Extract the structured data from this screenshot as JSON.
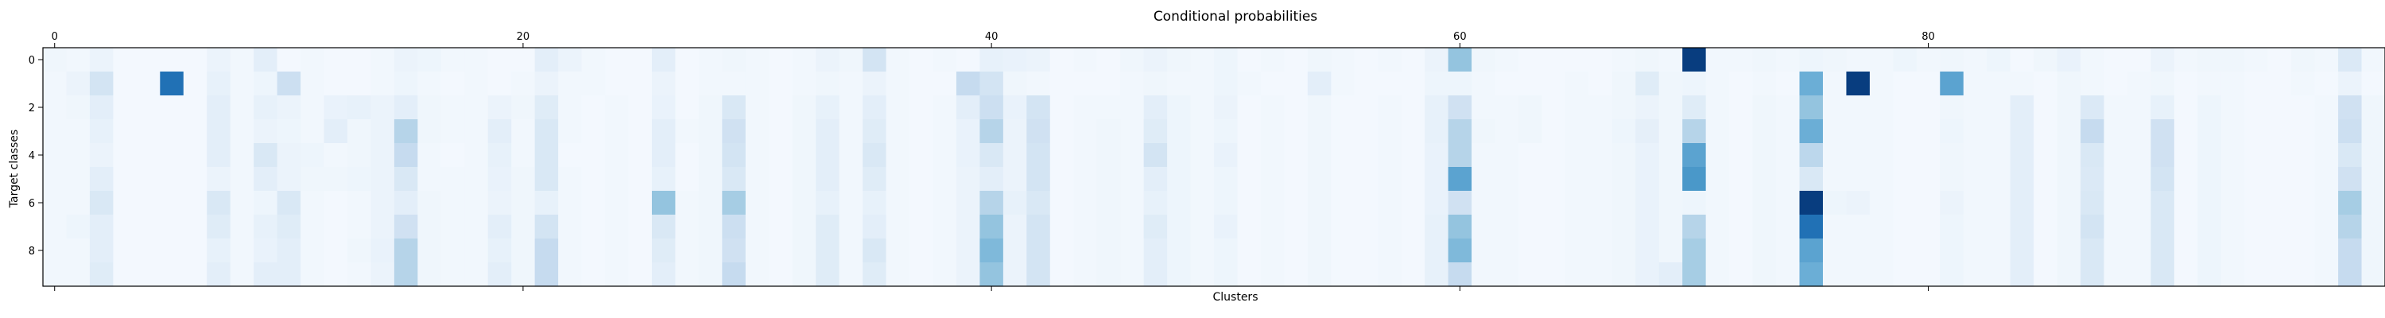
{
  "chart_data": {
    "type": "heatmap",
    "title": "Conditional probabilities",
    "xlabel": "Clusters",
    "ylabel": "Target classes",
    "x_ticks": [
      0,
      20,
      40,
      60,
      80
    ],
    "y_ticks": [
      0,
      2,
      4,
      6,
      8
    ],
    "x_tick_position": "top",
    "n_columns": 100,
    "n_rows": 10,
    "value_range": [
      0,
      1
    ],
    "colormap": "Blues",
    "grid": false,
    "values": [
      [
        0.04,
        0.03,
        0.06,
        0.02,
        0.02,
        0.02,
        0.02,
        0.06,
        0.03,
        0.1,
        0.02,
        0.03,
        0.02,
        0.02,
        0.03,
        0.06,
        0.05,
        0.03,
        0.03,
        0.02,
        0.02,
        0.1,
        0.06,
        0.03,
        0.02,
        0.02,
        0.1,
        0.02,
        0.03,
        0.04,
        0.03,
        0.02,
        0.03,
        0.06,
        0.04,
        0.18,
        0.03,
        0.02,
        0.03,
        0.02,
        0.08,
        0.07,
        0.06,
        0.02,
        0.03,
        0.02,
        0.04,
        0.06,
        0.04,
        0.03,
        0.05,
        0.02,
        0.03,
        0.02,
        0.04,
        0.03,
        0.02,
        0.03,
        0.02,
        0.06,
        0.4,
        0.04,
        0.03,
        0.02,
        0.02,
        0.02,
        0.02,
        0.03,
        0.04,
        0.03,
        0.95,
        0.03,
        0.03,
        0.04,
        0.03,
        0.05,
        0.04,
        0.03,
        0.03,
        0.05,
        0.03,
        0.04,
        0.03,
        0.05,
        0.02,
        0.04,
        0.07,
        0.03,
        0.02,
        0.02,
        0.06,
        0.03,
        0.04,
        0.04,
        0.03,
        0.02,
        0.04,
        0.03,
        0.14,
        0.03
      ],
      [
        0.03,
        0.06,
        0.18,
        0.02,
        0.02,
        0.75,
        0.02,
        0.08,
        0.03,
        0.05,
        0.22,
        0.03,
        0.02,
        0.02,
        0.03,
        0.05,
        0.03,
        0.02,
        0.03,
        0.02,
        0.03,
        0.06,
        0.03,
        0.03,
        0.02,
        0.02,
        0.06,
        0.02,
        0.03,
        0.03,
        0.03,
        0.02,
        0.03,
        0.04,
        0.03,
        0.06,
        0.03,
        0.02,
        0.02,
        0.25,
        0.18,
        0.04,
        0.03,
        0.02,
        0.02,
        0.02,
        0.03,
        0.04,
        0.03,
        0.03,
        0.05,
        0.03,
        0.02,
        0.02,
        0.1,
        0.03,
        0.02,
        0.02,
        0.02,
        0.05,
        0.05,
        0.03,
        0.02,
        0.02,
        0.02,
        0.03,
        0.02,
        0.04,
        0.12,
        0.04,
        0.05,
        0.03,
        0.02,
        0.03,
        0.02,
        0.5,
        0.03,
        0.95,
        0.03,
        0.02,
        0.02,
        0.55,
        0.03,
        0.03,
        0.03,
        0.02,
        0.04,
        0.03,
        0.02,
        0.03,
        0.04,
        0.02,
        0.03,
        0.03,
        0.02,
        0.02,
        0.03,
        0.02,
        0.06,
        0.02
      ],
      [
        0.03,
        0.04,
        0.1,
        0.02,
        0.02,
        0.02,
        0.02,
        0.1,
        0.03,
        0.08,
        0.06,
        0.03,
        0.07,
        0.08,
        0.06,
        0.1,
        0.04,
        0.03,
        0.03,
        0.06,
        0.04,
        0.12,
        0.03,
        0.02,
        0.03,
        0.02,
        0.07,
        0.02,
        0.04,
        0.15,
        0.03,
        0.02,
        0.04,
        0.08,
        0.03,
        0.1,
        0.03,
        0.02,
        0.03,
        0.1,
        0.22,
        0.07,
        0.18,
        0.02,
        0.03,
        0.03,
        0.03,
        0.1,
        0.05,
        0.03,
        0.06,
        0.02,
        0.03,
        0.02,
        0.04,
        0.02,
        0.02,
        0.03,
        0.02,
        0.08,
        0.2,
        0.03,
        0.03,
        0.04,
        0.02,
        0.03,
        0.03,
        0.04,
        0.06,
        0.04,
        0.12,
        0.03,
        0.02,
        0.04,
        0.03,
        0.4,
        0.03,
        0.03,
        0.03,
        0.02,
        0.02,
        0.04,
        0.03,
        0.03,
        0.1,
        0.02,
        0.04,
        0.14,
        0.03,
        0.03,
        0.08,
        0.02,
        0.05,
        0.03,
        0.02,
        0.02,
        0.02,
        0.03,
        0.2,
        0.04
      ],
      [
        0.03,
        0.03,
        0.08,
        0.02,
        0.02,
        0.02,
        0.02,
        0.1,
        0.03,
        0.06,
        0.05,
        0.03,
        0.1,
        0.04,
        0.06,
        0.3,
        0.04,
        0.03,
        0.03,
        0.1,
        0.03,
        0.15,
        0.03,
        0.02,
        0.03,
        0.02,
        0.1,
        0.03,
        0.04,
        0.2,
        0.03,
        0.02,
        0.04,
        0.1,
        0.03,
        0.12,
        0.03,
        0.02,
        0.03,
        0.07,
        0.3,
        0.06,
        0.2,
        0.02,
        0.03,
        0.04,
        0.03,
        0.12,
        0.05,
        0.03,
        0.05,
        0.02,
        0.03,
        0.02,
        0.04,
        0.02,
        0.02,
        0.03,
        0.02,
        0.08,
        0.3,
        0.04,
        0.03,
        0.04,
        0.02,
        0.03,
        0.03,
        0.05,
        0.09,
        0.04,
        0.3,
        0.03,
        0.02,
        0.04,
        0.03,
        0.5,
        0.03,
        0.03,
        0.03,
        0.02,
        0.02,
        0.05,
        0.03,
        0.03,
        0.1,
        0.02,
        0.04,
        0.25,
        0.03,
        0.03,
        0.2,
        0.02,
        0.05,
        0.03,
        0.02,
        0.02,
        0.02,
        0.03,
        0.22,
        0.04
      ],
      [
        0.03,
        0.03,
        0.06,
        0.02,
        0.02,
        0.02,
        0.02,
        0.1,
        0.03,
        0.15,
        0.06,
        0.05,
        0.03,
        0.04,
        0.06,
        0.25,
        0.03,
        0.02,
        0.03,
        0.08,
        0.03,
        0.15,
        0.02,
        0.02,
        0.03,
        0.02,
        0.1,
        0.02,
        0.04,
        0.18,
        0.03,
        0.02,
        0.04,
        0.1,
        0.03,
        0.15,
        0.03,
        0.02,
        0.03,
        0.07,
        0.15,
        0.06,
        0.18,
        0.02,
        0.03,
        0.04,
        0.03,
        0.18,
        0.05,
        0.03,
        0.07,
        0.02,
        0.03,
        0.02,
        0.04,
        0.02,
        0.02,
        0.03,
        0.02,
        0.07,
        0.3,
        0.03,
        0.03,
        0.02,
        0.02,
        0.03,
        0.03,
        0.04,
        0.07,
        0.04,
        0.55,
        0.03,
        0.02,
        0.04,
        0.03,
        0.28,
        0.03,
        0.03,
        0.03,
        0.02,
        0.02,
        0.04,
        0.03,
        0.03,
        0.1,
        0.02,
        0.04,
        0.15,
        0.03,
        0.03,
        0.2,
        0.02,
        0.05,
        0.03,
        0.02,
        0.02,
        0.02,
        0.03,
        0.15,
        0.04
      ],
      [
        0.03,
        0.03,
        0.1,
        0.02,
        0.02,
        0.02,
        0.02,
        0.06,
        0.03,
        0.1,
        0.06,
        0.04,
        0.04,
        0.05,
        0.06,
        0.15,
        0.03,
        0.03,
        0.03,
        0.07,
        0.04,
        0.15,
        0.03,
        0.02,
        0.03,
        0.02,
        0.08,
        0.02,
        0.04,
        0.15,
        0.03,
        0.02,
        0.04,
        0.1,
        0.03,
        0.12,
        0.03,
        0.02,
        0.03,
        0.06,
        0.1,
        0.06,
        0.18,
        0.02,
        0.03,
        0.04,
        0.03,
        0.1,
        0.05,
        0.03,
        0.05,
        0.02,
        0.03,
        0.02,
        0.04,
        0.02,
        0.02,
        0.03,
        0.02,
        0.07,
        0.55,
        0.03,
        0.03,
        0.02,
        0.02,
        0.03,
        0.03,
        0.04,
        0.07,
        0.04,
        0.6,
        0.03,
        0.02,
        0.04,
        0.03,
        0.15,
        0.03,
        0.03,
        0.03,
        0.02,
        0.02,
        0.04,
        0.03,
        0.03,
        0.1,
        0.02,
        0.04,
        0.14,
        0.03,
        0.03,
        0.18,
        0.02,
        0.05,
        0.03,
        0.02,
        0.02,
        0.02,
        0.03,
        0.2,
        0.04
      ],
      [
        0.03,
        0.03,
        0.15,
        0.02,
        0.02,
        0.02,
        0.02,
        0.15,
        0.03,
        0.05,
        0.15,
        0.03,
        0.02,
        0.03,
        0.06,
        0.1,
        0.04,
        0.03,
        0.03,
        0.06,
        0.04,
        0.08,
        0.03,
        0.02,
        0.03,
        0.02,
        0.4,
        0.03,
        0.04,
        0.35,
        0.03,
        0.02,
        0.04,
        0.08,
        0.03,
        0.08,
        0.03,
        0.02,
        0.03,
        0.06,
        0.3,
        0.08,
        0.15,
        0.02,
        0.03,
        0.04,
        0.03,
        0.08,
        0.05,
        0.03,
        0.05,
        0.02,
        0.03,
        0.02,
        0.04,
        0.02,
        0.02,
        0.03,
        0.02,
        0.07,
        0.2,
        0.03,
        0.03,
        0.02,
        0.02,
        0.03,
        0.03,
        0.04,
        0.07,
        0.04,
        0.05,
        0.03,
        0.02,
        0.04,
        0.03,
        0.95,
        0.05,
        0.06,
        0.03,
        0.02,
        0.02,
        0.06,
        0.03,
        0.03,
        0.1,
        0.02,
        0.04,
        0.15,
        0.03,
        0.03,
        0.15,
        0.02,
        0.05,
        0.03,
        0.02,
        0.02,
        0.02,
        0.03,
        0.35,
        0.04
      ],
      [
        0.03,
        0.05,
        0.1,
        0.02,
        0.02,
        0.02,
        0.02,
        0.12,
        0.03,
        0.08,
        0.12,
        0.03,
        0.02,
        0.03,
        0.06,
        0.2,
        0.04,
        0.03,
        0.03,
        0.1,
        0.04,
        0.18,
        0.03,
        0.02,
        0.03,
        0.02,
        0.15,
        0.03,
        0.04,
        0.22,
        0.03,
        0.02,
        0.04,
        0.12,
        0.03,
        0.1,
        0.03,
        0.02,
        0.03,
        0.06,
        0.4,
        0.06,
        0.18,
        0.02,
        0.03,
        0.04,
        0.03,
        0.12,
        0.05,
        0.03,
        0.07,
        0.02,
        0.03,
        0.02,
        0.04,
        0.02,
        0.02,
        0.03,
        0.02,
        0.08,
        0.4,
        0.03,
        0.03,
        0.02,
        0.02,
        0.03,
        0.03,
        0.04,
        0.07,
        0.04,
        0.3,
        0.03,
        0.02,
        0.04,
        0.03,
        0.75,
        0.03,
        0.03,
        0.03,
        0.02,
        0.02,
        0.05,
        0.03,
        0.03,
        0.1,
        0.02,
        0.04,
        0.18,
        0.03,
        0.03,
        0.15,
        0.02,
        0.05,
        0.03,
        0.02,
        0.02,
        0.02,
        0.03,
        0.3,
        0.04
      ],
      [
        0.03,
        0.03,
        0.1,
        0.02,
        0.02,
        0.02,
        0.02,
        0.08,
        0.03,
        0.07,
        0.1,
        0.03,
        0.02,
        0.04,
        0.07,
        0.3,
        0.04,
        0.03,
        0.03,
        0.08,
        0.04,
        0.25,
        0.03,
        0.02,
        0.03,
        0.02,
        0.12,
        0.03,
        0.04,
        0.2,
        0.03,
        0.02,
        0.04,
        0.12,
        0.03,
        0.15,
        0.03,
        0.02,
        0.03,
        0.06,
        0.45,
        0.06,
        0.18,
        0.02,
        0.03,
        0.04,
        0.03,
        0.1,
        0.05,
        0.03,
        0.05,
        0.02,
        0.03,
        0.02,
        0.04,
        0.02,
        0.02,
        0.03,
        0.02,
        0.08,
        0.45,
        0.03,
        0.03,
        0.02,
        0.02,
        0.03,
        0.03,
        0.04,
        0.07,
        0.04,
        0.35,
        0.03,
        0.02,
        0.04,
        0.03,
        0.55,
        0.03,
        0.03,
        0.03,
        0.02,
        0.02,
        0.05,
        0.03,
        0.03,
        0.1,
        0.02,
        0.04,
        0.15,
        0.03,
        0.03,
        0.15,
        0.02,
        0.05,
        0.03,
        0.02,
        0.02,
        0.02,
        0.03,
        0.25,
        0.04
      ],
      [
        0.03,
        0.03,
        0.12,
        0.02,
        0.02,
        0.02,
        0.02,
        0.1,
        0.03,
        0.1,
        0.1,
        0.03,
        0.02,
        0.03,
        0.06,
        0.3,
        0.04,
        0.03,
        0.03,
        0.1,
        0.04,
        0.25,
        0.03,
        0.02,
        0.03,
        0.02,
        0.1,
        0.03,
        0.04,
        0.25,
        0.03,
        0.02,
        0.04,
        0.12,
        0.03,
        0.12,
        0.03,
        0.02,
        0.03,
        0.06,
        0.4,
        0.06,
        0.18,
        0.02,
        0.03,
        0.04,
        0.03,
        0.1,
        0.05,
        0.03,
        0.05,
        0.02,
        0.03,
        0.02,
        0.04,
        0.02,
        0.02,
        0.03,
        0.02,
        0.08,
        0.25,
        0.03,
        0.03,
        0.02,
        0.02,
        0.03,
        0.03,
        0.04,
        0.07,
        0.1,
        0.35,
        0.03,
        0.02,
        0.04,
        0.03,
        0.5,
        0.03,
        0.03,
        0.03,
        0.02,
        0.02,
        0.05,
        0.03,
        0.03,
        0.1,
        0.02,
        0.04,
        0.15,
        0.03,
        0.03,
        0.15,
        0.02,
        0.05,
        0.03,
        0.02,
        0.02,
        0.02,
        0.03,
        0.25,
        0.04
      ]
    ]
  }
}
